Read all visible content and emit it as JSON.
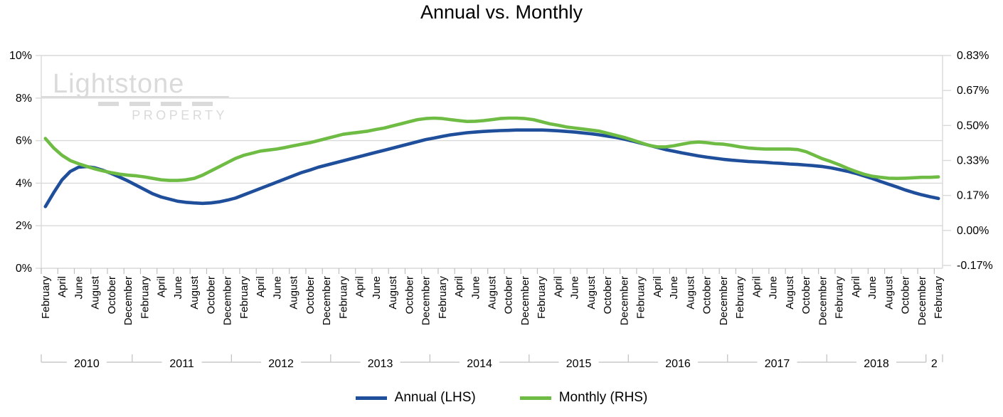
{
  "title": "Annual vs. Monthly",
  "watermark": {
    "name": "Lightstone",
    "tagline": "PROPERTY"
  },
  "legend": {
    "items": [
      {
        "label": "Annual (LHS)",
        "color": "#1f4e9b"
      },
      {
        "label": "Monthly (RHS)",
        "color": "#6fbc44"
      }
    ]
  },
  "chart_data": {
    "type": "line",
    "title": "Annual vs. Monthly",
    "x_start": "2010-02",
    "x_end": "2019-02",
    "frequency": "monthly",
    "grid": "horizontal",
    "legend_position": "bottom",
    "left_axis": {
      "ticks": [
        "0%",
        "2%",
        "4%",
        "6%",
        "8%",
        "10%"
      ],
      "min": 0,
      "max": 10
    },
    "right_axis": {
      "ticks": [
        "-0.17%",
        "0.00%",
        "0.17%",
        "0.33%",
        "0.50%",
        "0.67%",
        "0.83%"
      ],
      "min": -0.1667,
      "max": 0.8333
    },
    "x_tick_labels": [
      "February",
      "April",
      "June",
      "August",
      "October",
      "December",
      "February",
      "April",
      "June",
      "August",
      "October",
      "December",
      "February",
      "April",
      "June",
      "August",
      "October",
      "December",
      "February",
      "April",
      "June",
      "August",
      "October",
      "December",
      "February",
      "April",
      "June",
      "August",
      "October",
      "December",
      "February",
      "April",
      "June",
      "August",
      "October",
      "December",
      "February",
      "April",
      "June",
      "August",
      "October",
      "December",
      "February",
      "April",
      "June",
      "August",
      "October",
      "December",
      "February",
      "April",
      "June",
      "August",
      "October",
      "December",
      "February"
    ],
    "year_labels": [
      "2010",
      "2011",
      "2012",
      "2013",
      "2014",
      "2015",
      "2016",
      "2017",
      "2018",
      "2"
    ],
    "year_month_spans": [
      11,
      12,
      12,
      12,
      12,
      12,
      12,
      12,
      12,
      2
    ],
    "series": [
      {
        "name": "Annual (LHS)",
        "axis": "left",
        "color": "#1f4e9b",
        "values": [
          2.9,
          3.55,
          4.15,
          4.55,
          4.75,
          4.78,
          4.72,
          4.6,
          4.45,
          4.28,
          4.1,
          3.9,
          3.7,
          3.5,
          3.35,
          3.25,
          3.15,
          3.1,
          3.07,
          3.05,
          3.07,
          3.12,
          3.2,
          3.3,
          3.45,
          3.6,
          3.75,
          3.9,
          4.05,
          4.2,
          4.35,
          4.5,
          4.62,
          4.75,
          4.85,
          4.95,
          5.05,
          5.15,
          5.25,
          5.35,
          5.45,
          5.55,
          5.65,
          5.75,
          5.85,
          5.95,
          6.05,
          6.12,
          6.2,
          6.27,
          6.32,
          6.37,
          6.4,
          6.43,
          6.45,
          6.47,
          6.48,
          6.5,
          6.5,
          6.5,
          6.5,
          6.48,
          6.46,
          6.43,
          6.4,
          6.36,
          6.32,
          6.27,
          6.21,
          6.15,
          6.07,
          5.98,
          5.88,
          5.78,
          5.68,
          5.58,
          5.5,
          5.42,
          5.35,
          5.28,
          5.22,
          5.17,
          5.12,
          5.08,
          5.05,
          5.02,
          5.0,
          4.98,
          4.95,
          4.93,
          4.9,
          4.88,
          4.85,
          4.82,
          4.78,
          4.72,
          4.64,
          4.56,
          4.46,
          4.34,
          4.22,
          4.08,
          3.95,
          3.82,
          3.68,
          3.56,
          3.45,
          3.36,
          3.28
        ]
      },
      {
        "name": "Monthly (RHS)",
        "axis": "right",
        "color": "#6fbc44",
        "values": [
          0.438,
          0.393,
          0.358,
          0.333,
          0.318,
          0.305,
          0.293,
          0.283,
          0.275,
          0.268,
          0.263,
          0.26,
          0.255,
          0.248,
          0.241,
          0.238,
          0.238,
          0.241,
          0.248,
          0.263,
          0.283,
          0.303,
          0.323,
          0.343,
          0.358,
          0.368,
          0.378,
          0.383,
          0.388,
          0.395,
          0.403,
          0.411,
          0.418,
          0.428,
          0.438,
          0.448,
          0.458,
          0.463,
          0.468,
          0.473,
          0.481,
          0.488,
          0.498,
          0.508,
          0.518,
          0.528,
          0.533,
          0.535,
          0.533,
          0.528,
          0.523,
          0.519,
          0.52,
          0.523,
          0.528,
          0.533,
          0.535,
          0.535,
          0.533,
          0.528,
          0.518,
          0.508,
          0.501,
          0.493,
          0.488,
          0.483,
          0.478,
          0.473,
          0.463,
          0.453,
          0.443,
          0.431,
          0.418,
          0.405,
          0.398,
          0.398,
          0.403,
          0.411,
          0.418,
          0.421,
          0.418,
          0.413,
          0.411,
          0.405,
          0.398,
          0.393,
          0.39,
          0.388,
          0.388,
          0.388,
          0.388,
          0.385,
          0.375,
          0.358,
          0.341,
          0.328,
          0.313,
          0.296,
          0.281,
          0.268,
          0.258,
          0.253,
          0.249,
          0.248,
          0.249,
          0.251,
          0.253,
          0.253,
          0.255
        ]
      }
    ]
  }
}
